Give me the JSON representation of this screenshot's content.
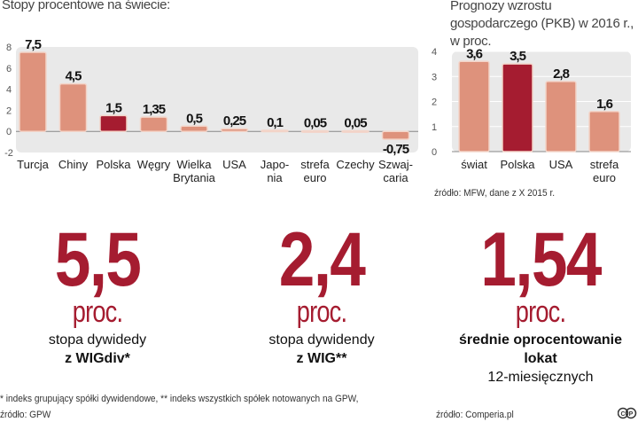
{
  "chart_data": [
    {
      "type": "bar",
      "title": "Stopy procentowe na świecie:",
      "categories": [
        [
          "Turcja"
        ],
        [
          "Chiny"
        ],
        [
          "Polska"
        ],
        [
          "Węgry"
        ],
        [
          "Wielka",
          "Brytania"
        ],
        [
          "USA"
        ],
        [
          "Japo-",
          "nia"
        ],
        [
          "strefa",
          "euro"
        ],
        [
          "Czechy"
        ],
        [
          "Szwaj-",
          "caria"
        ]
      ],
      "values": [
        7.5,
        4.5,
        1.5,
        1.35,
        0.5,
        0.25,
        0.1,
        0.05,
        0.05,
        -0.75
      ],
      "data_labels": [
        "7,5",
        "4,5",
        "1,5",
        "1,35",
        "0,5",
        "0,25",
        "0,1",
        "0,05",
        "0,05",
        "-0,75"
      ],
      "highlight_index": 2,
      "yticks": [
        8,
        6,
        4,
        2,
        0,
        -2
      ],
      "ylim": [
        -2,
        8
      ],
      "grid": false
    },
    {
      "type": "bar",
      "title": "Prognozy wzrostu gospodarczego (PKB) w 2016 r., w proc.",
      "categories": [
        [
          "świat"
        ],
        [
          "Polska"
        ],
        [
          "USA"
        ],
        [
          "strefa",
          "euro"
        ]
      ],
      "values": [
        3.6,
        3.5,
        2.8,
        1.6
      ],
      "data_labels": [
        "3,6",
        "3,5",
        "2,8",
        "1,6"
      ],
      "highlight_index": 1,
      "yticks": [
        4,
        3,
        2,
        1,
        0
      ],
      "ylim": [
        0,
        4
      ],
      "grid": true,
      "source": "źródło: MFW, dane z X 2015 r."
    }
  ],
  "colors": {
    "bar": "#de927c",
    "highlight": "#a51c30",
    "accent": "#a51c30",
    "plot_bg": "#e9e9e9"
  },
  "stats": [
    {
      "value": "5,5",
      "unit": "proc.",
      "line1": "stopa dywidedy",
      "line2": "z WIGdiv*",
      "line3": ""
    },
    {
      "value": "2,4",
      "unit": "proc.",
      "line1": "stopa dywidendy",
      "line2": "z WIG**",
      "line3": ""
    },
    {
      "value": "1,54",
      "unit": "proc.",
      "line1": "średnie oprocentowanie",
      "line2": "lokat",
      "line3": "12-miesięcznych"
    }
  ],
  "footnote": "* indeks grupujący spółki dywidendowe, ** indeks wszystkich spółek notowanych na GPW,",
  "source_left": "źródło: GPW",
  "source_right": "źródło: Comperia.pl",
  "license_icon": "cc-icon"
}
